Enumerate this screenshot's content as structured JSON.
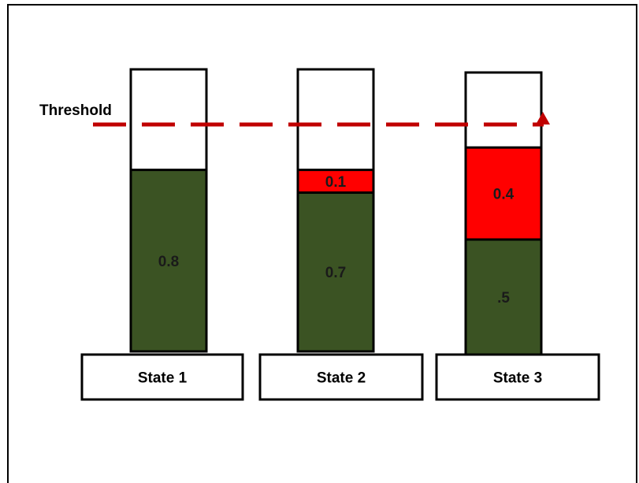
{
  "threshold_label": "Threshold",
  "threshold_value": 1.0,
  "colors": {
    "green": "#3b5323",
    "red": "#ff0000",
    "threshold": "#c00000",
    "outline": "#000000",
    "empty": "#ffffff"
  },
  "states": [
    {
      "label": "State 1",
      "segments": [
        {
          "value": 0.8,
          "label": "0.8",
          "color": "#3b5323"
        }
      ]
    },
    {
      "label": "State 2",
      "segments": [
        {
          "value": 0.7,
          "label": "0.7",
          "color": "#3b5323"
        },
        {
          "value": 0.1,
          "label": "0.1",
          "color": "#ff0000"
        }
      ]
    },
    {
      "label": "State 3",
      "segments": [
        {
          "value": 0.5,
          "label": ".5",
          "color": "#3b5323"
        },
        {
          "value": 0.4,
          "label": "0.4",
          "color": "#ff0000"
        }
      ]
    }
  ]
}
